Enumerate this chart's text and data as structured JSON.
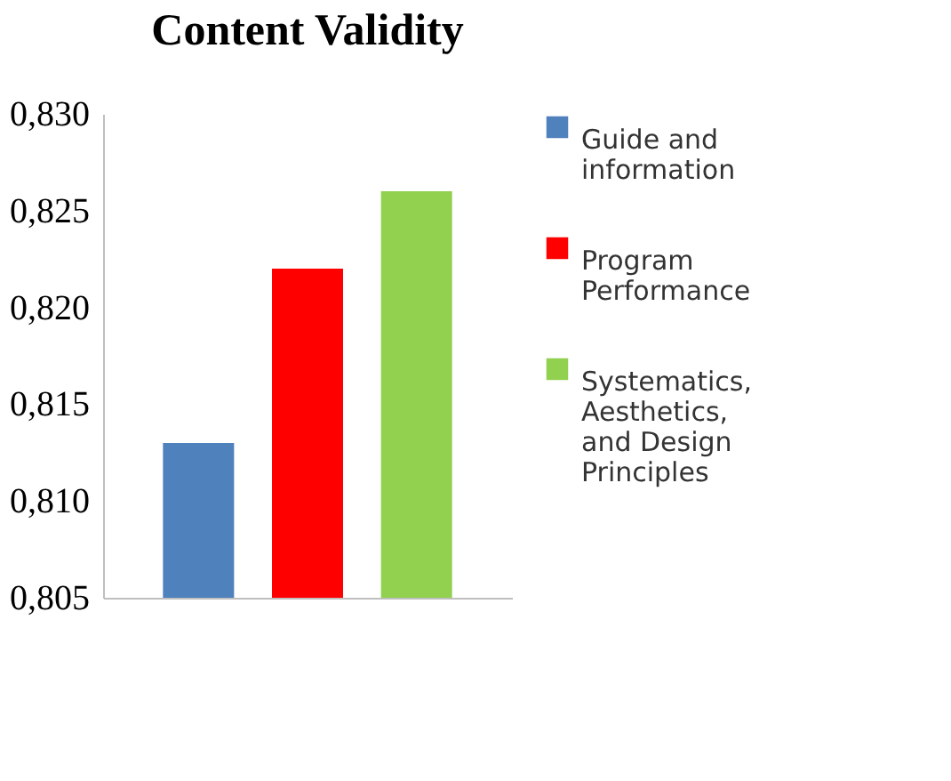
{
  "chart_data": {
    "type": "bar",
    "title": "Content Validity",
    "categories": [
      null
    ],
    "series": [
      {
        "name": "Guide and information",
        "color": "#4f81bd",
        "values": [
          0.813
        ]
      },
      {
        "name": "Program Performance",
        "color": "#ff0000",
        "values": [
          0.822
        ]
      },
      {
        "name": "Systematics, Aesthetics, and Design Principles",
        "color": "#92d050",
        "values": [
          0.826
        ]
      }
    ],
    "ylim": [
      0.805,
      0.83
    ],
    "yticks": [
      {
        "value": 0.805,
        "label": "0,805"
      },
      {
        "value": 0.81,
        "label": "0,810"
      },
      {
        "value": 0.815,
        "label": "0,815"
      },
      {
        "value": 0.82,
        "label": "0,820"
      },
      {
        "value": 0.825,
        "label": "0,825"
      },
      {
        "value": 0.83,
        "label": "0,830"
      }
    ],
    "grid": false,
    "legend": "right"
  }
}
